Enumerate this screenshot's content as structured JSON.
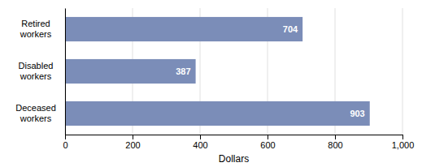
{
  "chart_data": {
    "type": "bar",
    "orientation": "horizontal",
    "categories": [
      "Deceased\nworkers",
      "Disabled\nworkers",
      "Retired\nworkers"
    ],
    "values": [
      903,
      387,
      704
    ],
    "color": "#7b8db8",
    "xlabel": "Dollars",
    "xlim": [
      0,
      1000
    ],
    "xticks": [
      0,
      200,
      400,
      600,
      800,
      {
        "value": 1000,
        "label": "1,000"
      }
    ],
    "grid": true,
    "data_labels": true
  }
}
